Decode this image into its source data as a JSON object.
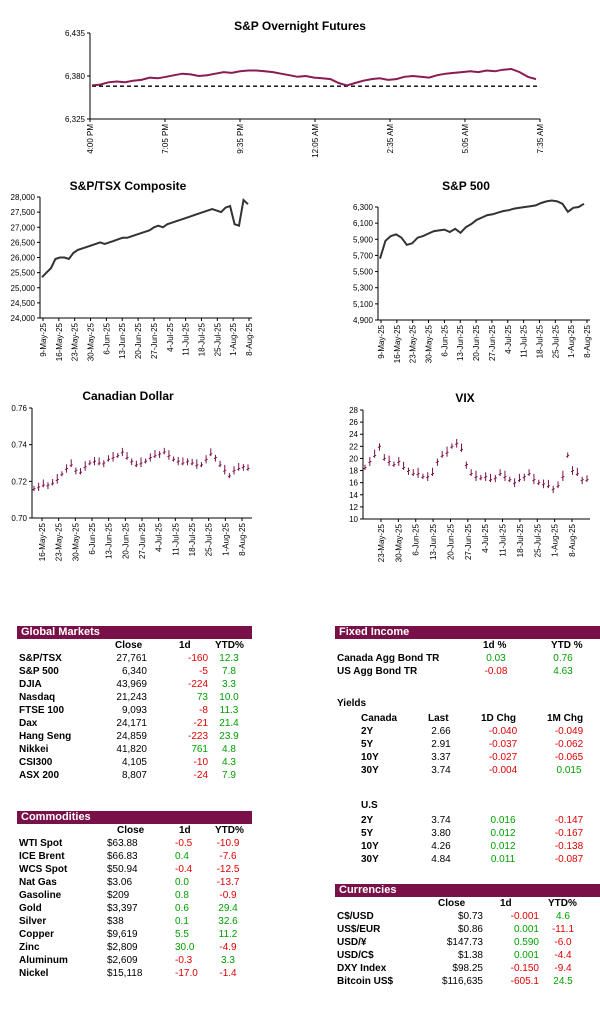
{
  "charts": {
    "sp_overnight": {
      "title": "S&P Overnight Futures"
    },
    "tsx": {
      "title": "S&P/TSX Composite"
    },
    "sp500": {
      "title": "S&P 500"
    },
    "cad": {
      "title": "Canadian Dollar"
    },
    "vix": {
      "title": "VIX"
    }
  },
  "chart_data": [
    {
      "type": "line",
      "title": "S&P Overnight Futures",
      "ylim": [
        6325,
        6435
      ],
      "yticks": [
        "6,435",
        "6,380",
        "6,325"
      ],
      "xticks": [
        "4:00 PM",
        "7:05 PM",
        "9:35 PM",
        "12:05 AM",
        "2:35 AM",
        "5:05 AM",
        "7:35 AM"
      ],
      "reference_line": 6367,
      "y": [
        6368,
        6369,
        6372,
        6373,
        6372,
        6374,
        6375,
        6378,
        6377,
        6379,
        6381,
        6383,
        6382,
        6380,
        6381,
        6383,
        6385,
        6384,
        6386,
        6387,
        6387,
        6386,
        6385,
        6383,
        6381,
        6379,
        6380,
        6378,
        6377,
        6376,
        6371,
        6368,
        6371,
        6374,
        6376,
        6377,
        6375,
        6376,
        6379,
        6380,
        6379,
        6378,
        6381,
        6383,
        6384,
        6385,
        6386,
        6385,
        6387,
        6386,
        6388,
        6389,
        6385,
        6379,
        6376
      ]
    },
    {
      "type": "line",
      "title": "S&P/TSX Composite",
      "ylim": [
        24000,
        28000
      ],
      "yticks": [
        "28,000",
        "27,500",
        "27,000",
        "26,500",
        "26,000",
        "25,500",
        "25,000",
        "24,500",
        "24,000"
      ],
      "xticks": [
        "9-May-25",
        "16-May-25",
        "23-May-25",
        "30-May-25",
        "6-Jun-25",
        "13-Jun-25",
        "20-Jun-25",
        "27-Jun-25",
        "4-Jul-25",
        "11-Jul-25",
        "18-Jul-25",
        "25-Jul-25",
        "1-Aug-25",
        "8-Aug-25"
      ],
      "y": [
        25350,
        25500,
        25650,
        25950,
        26000,
        26000,
        25950,
        26150,
        26250,
        26300,
        26350,
        26400,
        26450,
        26500,
        26450,
        26500,
        26550,
        26600,
        26650,
        26650,
        26700,
        26750,
        26800,
        26850,
        26900,
        27000,
        27050,
        27000,
        27100,
        27150,
        27200,
        27250,
        27300,
        27350,
        27400,
        27450,
        27500,
        27550,
        27600,
        27550,
        27500,
        27650,
        27700,
        27100,
        27050,
        27900,
        27761
      ]
    },
    {
      "type": "line",
      "title": "S&P 500",
      "ylim": [
        4900,
        6300
      ],
      "yticks": [
        "6,300",
        "6,100",
        "5,900",
        "5,700",
        "5,500",
        "5,300",
        "5,100",
        "4,900"
      ],
      "xticks": [
        "9-May-25",
        "16-May-25",
        "23-May-25",
        "30-May-25",
        "6-Jun-25",
        "13-Jun-25",
        "20-Jun-25",
        "27-Jun-25",
        "4-Jul-25",
        "11-Jul-25",
        "18-Jul-25",
        "25-Jul-25",
        "1-Aug-25",
        "8-Aug-25"
      ],
      "y": [
        5660,
        5880,
        5940,
        5960,
        5920,
        5830,
        5850,
        5920,
        5940,
        5970,
        6000,
        6010,
        6020,
        5990,
        6030,
        5980,
        6050,
        6090,
        6140,
        6170,
        6200,
        6210,
        6230,
        6250,
        6260,
        6280,
        6290,
        6300,
        6310,
        6320,
        6350,
        6370,
        6380,
        6370,
        6340,
        6240,
        6290,
        6300,
        6340
      ]
    },
    {
      "type": "ohlc",
      "title": "Canadian Dollar",
      "ylim": [
        0.7,
        0.76
      ],
      "yticks": [
        "0.76",
        "0.74",
        "0.72",
        "0.70"
      ],
      "xticks": [
        "16-May-25",
        "23-May-25",
        "30-May-25",
        "6-Jun-25",
        "13-Jun-25",
        "20-Jun-25",
        "27-Jun-25",
        "4-Jul-25",
        "11-Jul-25",
        "18-Jul-25",
        "25-Jul-25",
        "1-Aug-25",
        "8-Aug-25"
      ],
      "y": [
        0.716,
        0.717,
        0.718,
        0.718,
        0.719,
        0.721,
        0.724,
        0.727,
        0.729,
        0.726,
        0.725,
        0.728,
        0.73,
        0.731,
        0.73,
        0.73,
        0.732,
        0.733,
        0.734,
        0.736,
        0.733,
        0.731,
        0.729,
        0.73,
        0.731,
        0.733,
        0.734,
        0.735,
        0.736,
        0.734,
        0.732,
        0.731,
        0.73,
        0.731,
        0.73,
        0.729,
        0.729,
        0.732,
        0.735,
        0.733,
        0.729,
        0.726,
        0.723,
        0.726,
        0.727,
        0.728,
        0.727
      ]
    },
    {
      "type": "ohlc",
      "title": "VIX",
      "ylim": [
        10,
        28
      ],
      "yticks": [
        "28",
        "26",
        "24",
        "22",
        "20",
        "18",
        "16",
        "14",
        "12",
        "10"
      ],
      "xticks": [
        "23-May-25",
        "30-May-25",
        "6-Jun-25",
        "13-Jun-25",
        "20-Jun-25",
        "27-Jun-25",
        "4-Jul-25",
        "11-Jul-25",
        "18-Jul-25",
        "25-Jul-25",
        "1-Aug-25",
        "8-Aug-25"
      ],
      "y": [
        18.5,
        19.5,
        20.5,
        22.0,
        20.0,
        19.5,
        19.0,
        19.5,
        18.5,
        18.0,
        17.5,
        17.5,
        17.0,
        17.0,
        17.5,
        19.5,
        20.5,
        21.0,
        22.0,
        22.5,
        21.5,
        19.0,
        17.5,
        17.0,
        16.8,
        17.0,
        16.5,
        16.8,
        17.5,
        17.0,
        16.5,
        16.0,
        16.5,
        17.0,
        17.5,
        16.5,
        16.0,
        15.8,
        15.5,
        15.0,
        15.5,
        17.0,
        20.5,
        18.0,
        17.5,
        16.5,
        16.5
      ]
    }
  ],
  "global_markets": {
    "title": "Global Markets",
    "headers": [
      "Close",
      "1d",
      "YTD%"
    ],
    "rows": [
      {
        "name": "S&P/TSX",
        "close": "27,761",
        "d": "-160",
        "ytd": "12.3"
      },
      {
        "name": "S&P 500",
        "close": "6,340",
        "d": "-5",
        "ytd": "7.8"
      },
      {
        "name": "DJIA",
        "close": "43,969",
        "d": "-224",
        "ytd": "3.3"
      },
      {
        "name": "Nasdaq",
        "close": "21,243",
        "d": "73",
        "ytd": "10.0"
      },
      {
        "name": "FTSE 100",
        "close": "9,093",
        "d": "-8",
        "ytd": "11.3"
      },
      {
        "name": "Dax",
        "close": "24,171",
        "d": "-21",
        "ytd": "21.4"
      },
      {
        "name": "Hang Seng",
        "close": "24,859",
        "d": "-223",
        "ytd": "23.9"
      },
      {
        "name": "Nikkei",
        "close": "41,820",
        "d": "761",
        "ytd": "4.8"
      },
      {
        "name": "CSI300",
        "close": "4,105",
        "d": "-10",
        "ytd": "4.3"
      },
      {
        "name": "ASX 200",
        "close": "8,807",
        "d": "-24",
        "ytd": "7.9"
      }
    ]
  },
  "commodities": {
    "title": "Commodities",
    "headers": [
      "Close",
      "1d",
      "YTD%"
    ],
    "rows": [
      {
        "name": "WTI Spot",
        "close": "$63.88",
        "d": "-0.5",
        "ytd": "-10.9"
      },
      {
        "name": "ICE Brent",
        "close": "$66.83",
        "d": "0.4",
        "ytd": "-7.6"
      },
      {
        "name": "WCS Spot",
        "close": "$50.94",
        "d": "-0.4",
        "ytd": "-12.5"
      },
      {
        "name": "Nat Gas",
        "close": "$3.06",
        "d": "0.0",
        "ytd": "-13.7"
      },
      {
        "name": "Gasoline",
        "close": "$209",
        "d": "0.8",
        "ytd": "-0.9"
      },
      {
        "name": "Gold",
        "close": "$3,397",
        "d": "0.6",
        "ytd": "29.4"
      },
      {
        "name": "Silver",
        "close": "$38",
        "d": "0.1",
        "ytd": "32.6"
      },
      {
        "name": "Copper",
        "close": "$9,619",
        "d": "5.5",
        "ytd": "11.2"
      },
      {
        "name": "Zinc",
        "close": "$2,809",
        "d": "30.0",
        "ytd": "-4.9"
      },
      {
        "name": "Aluminum",
        "close": "$2,609",
        "d": "-0.3",
        "ytd": "3.3"
      },
      {
        "name": "Nickel",
        "close": "$15,118",
        "d": "-17.0",
        "ytd": "-1.4"
      }
    ]
  },
  "fixed_income": {
    "title": "Fixed Income",
    "headers": [
      "1d %",
      "YTD %"
    ],
    "rows": [
      {
        "name": "Canada Agg Bond TR",
        "d": "0.03",
        "ytd": "0.76"
      },
      {
        "name": "US Agg Bond TR",
        "d": "-0.08",
        "ytd": "4.63"
      }
    ]
  },
  "yields": {
    "title": "Yields",
    "canada_label": "Canada",
    "us_label": "U.S",
    "headers": [
      "Last",
      "1D Chg",
      "1M Chg"
    ],
    "canada": [
      {
        "term": "2Y",
        "last": "2.66",
        "d": "-0.040",
        "m": "-0.049"
      },
      {
        "term": "5Y",
        "last": "2.91",
        "d": "-0.037",
        "m": "-0.062"
      },
      {
        "term": "10Y",
        "last": "3.37",
        "d": "-0.027",
        "m": "-0.065"
      },
      {
        "term": "30Y",
        "last": "3.74",
        "d": "-0.004",
        "m": "0.015"
      }
    ],
    "us": [
      {
        "term": "2Y",
        "last": "3.74",
        "d": "0.016",
        "m": "-0.147"
      },
      {
        "term": "5Y",
        "last": "3.80",
        "d": "0.012",
        "m": "-0.167"
      },
      {
        "term": "10Y",
        "last": "4.26",
        "d": "0.012",
        "m": "-0.138"
      },
      {
        "term": "30Y",
        "last": "4.84",
        "d": "0.011",
        "m": "-0.087"
      }
    ]
  },
  "currencies": {
    "title": "Currencies",
    "headers": [
      "Close",
      "1d",
      "YTD%"
    ],
    "rows": [
      {
        "name": "C$/USD",
        "close": "$0.73",
        "d": "-0.001",
        "ytd": "4.6"
      },
      {
        "name": "US$/EUR",
        "close": "$0.86",
        "d": "0.001",
        "ytd": "-11.1"
      },
      {
        "name": "USD/¥",
        "close": "$147.73",
        "d": "0.590",
        "ytd": "-6.0"
      },
      {
        "name": "USD/C$",
        "close": "$1.38",
        "d": "0.001",
        "ytd": "-4.4"
      },
      {
        "name": "DXY Index",
        "close": "$98.25",
        "d": "-0.150",
        "ytd": "-9.4"
      },
      {
        "name": "Bitcoin US$",
        "close": "$116,635",
        "d": "-605.1",
        "ytd": "24.5"
      }
    ]
  },
  "colors": {
    "line_overnight": "#8b1a55",
    "line_dark": "#333333",
    "ohlc": "#7a1048",
    "header_bg": "#7a1048",
    "negative": "#e00000",
    "positive": "#00a000"
  }
}
